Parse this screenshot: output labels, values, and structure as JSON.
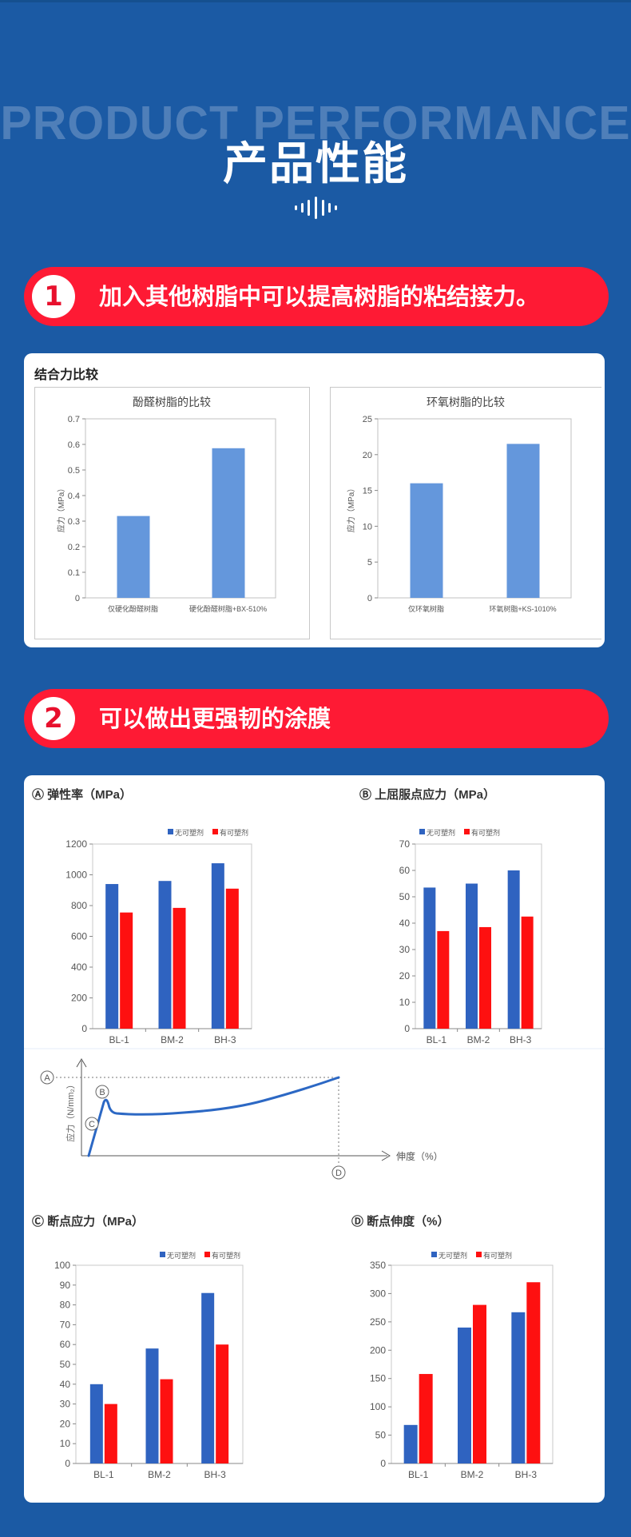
{
  "header": {
    "bg_title": "PRODUCT PERFORMANCE",
    "title": "产品性能",
    "wave_icon": "sound-wave-icon"
  },
  "section1": {
    "number": "1",
    "title": "加入其他树脂中可以提高树脂的粘结接力。",
    "card_title": "结合力比较"
  },
  "section2": {
    "number": "2",
    "title": "可以做出更强韧的涂膜"
  },
  "colors": {
    "background": "#1b5aa4",
    "banner_red": "#fe1a34",
    "bar_light_blue": "#6497dc",
    "bar_blue": "#2f63c0",
    "bar_red": "#fe1010",
    "curve_blue": "#2c68c4"
  },
  "legend": {
    "without": "无可塑剂",
    "with": "有可塑剂"
  },
  "stress_strain": {
    "ylabel": "应力（N/mm₂）",
    "xlabel": "伸度（%）",
    "markers": [
      "A",
      "B",
      "C",
      "D"
    ]
  },
  "chart_data": [
    {
      "type": "bar",
      "title": "酚醛树脂的比较",
      "categories": [
        "仅硬化酚醛树脂",
        "硬化酚醛树脂+BX-510%"
      ],
      "values": [
        0.32,
        0.585
      ],
      "xlabel": "",
      "ylabel": "应力（MPa）",
      "ylim": [
        0,
        0.7
      ],
      "yticks": [
        "0",
        "0.1",
        "0.2",
        "0.3",
        "0.4",
        "0.5",
        "0.6",
        "0.7"
      ]
    },
    {
      "type": "bar",
      "title": "环氧树脂的比较",
      "categories": [
        "仅环氧树脂",
        "环氧树脂+KS-1010%"
      ],
      "values": [
        16,
        21.5
      ],
      "xlabel": "",
      "ylabel": "应力（MPa）",
      "ylim": [
        0,
        25
      ],
      "yticks": [
        "0",
        "5",
        "10",
        "15",
        "20",
        "25"
      ]
    },
    {
      "type": "bar",
      "title": "Ⓐ 弹性率（MPa）",
      "categories": [
        "BL-1",
        "BM-2",
        "BH-3"
      ],
      "series": [
        {
          "name": "无可塑剂",
          "values": [
            940,
            960,
            1075
          ]
        },
        {
          "name": "有可塑剂",
          "values": [
            755,
            785,
            910
          ]
        }
      ],
      "ylim": [
        0,
        1200
      ],
      "yticks": [
        "0",
        "200",
        "400",
        "600",
        "800",
        "1000",
        "1200"
      ],
      "legend_position": "top-right"
    },
    {
      "type": "bar",
      "title": "Ⓑ 上屈服点应力（MPa）",
      "categories": [
        "BL-1",
        "BM-2",
        "BH-3"
      ],
      "series": [
        {
          "name": "无可塑剂",
          "values": [
            53.5,
            55,
            60
          ]
        },
        {
          "name": "有可塑剂",
          "values": [
            37,
            38.5,
            42.5
          ]
        }
      ],
      "ylim": [
        0,
        70
      ],
      "yticks": [
        "0",
        "10",
        "20",
        "30",
        "40",
        "50",
        "60",
        "70"
      ],
      "legend_position": "top-right"
    },
    {
      "type": "bar",
      "title": "Ⓒ 断点应力（MPa）",
      "categories": [
        "BL-1",
        "BM-2",
        "BH-3"
      ],
      "series": [
        {
          "name": "无可塑剂",
          "values": [
            40,
            58,
            86
          ]
        },
        {
          "name": "有可塑剂",
          "values": [
            30,
            42.5,
            60
          ]
        }
      ],
      "ylim": [
        0,
        100
      ],
      "yticks": [
        "0",
        "10",
        "20",
        "30",
        "40",
        "50",
        "60",
        "70",
        "80",
        "90",
        "100"
      ],
      "legend_position": "top-right"
    },
    {
      "type": "bar",
      "title": "Ⓓ 断点伸度（%）",
      "categories": [
        "BL-1",
        "BM-2",
        "BH-3"
      ],
      "series": [
        {
          "name": "无可塑剂",
          "values": [
            68,
            240,
            267
          ]
        },
        {
          "name": "有可塑剂",
          "values": [
            158,
            280,
            320
          ]
        }
      ],
      "ylim": [
        0,
        350
      ],
      "yticks": [
        "0",
        "50",
        "100",
        "150",
        "200",
        "250",
        "300",
        "350"
      ],
      "legend_position": "top-right"
    }
  ]
}
